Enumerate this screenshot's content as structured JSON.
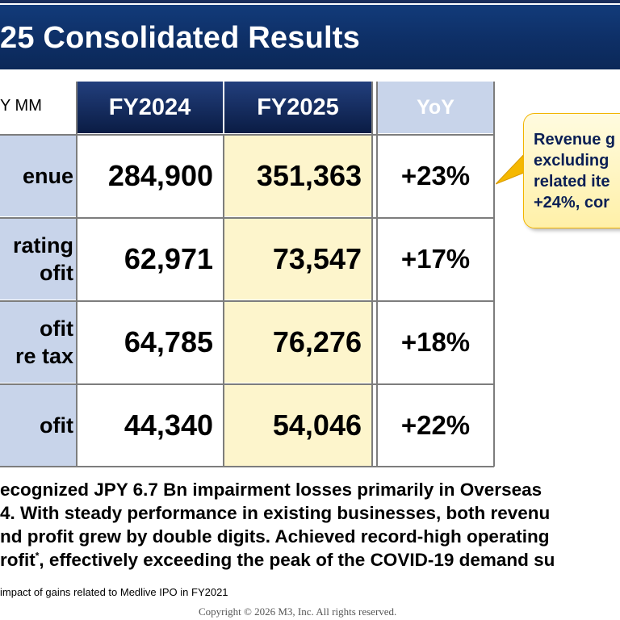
{
  "header": {
    "title": "25 Consolidated Results"
  },
  "table": {
    "unit_label": "Y MM",
    "columns": [
      "FY2024",
      "FY2025",
      "YoY"
    ],
    "rows": [
      {
        "label": [
          "enue"
        ],
        "fy2024": "284,900",
        "fy2025": "351,363",
        "yoy": "+23%"
      },
      {
        "label": [
          "rating",
          "ofit"
        ],
        "fy2024": "62,971",
        "fy2025": "73,547",
        "yoy": "+17%"
      },
      {
        "label": [
          "ofit",
          "re tax"
        ],
        "fy2024": "64,785",
        "fy2025": "76,276",
        "yoy": "+18%"
      },
      {
        "label": [
          "ofit"
        ],
        "fy2024": "44,340",
        "fy2025": "54,046",
        "yoy": "+22%"
      }
    ]
  },
  "callout": {
    "lines": [
      "Revenue g",
      "excluding",
      "related ite",
      "+24%, cor"
    ]
  },
  "summary": {
    "lines": [
      "ecognized JPY 6.7 Bn impairment losses primarily in Overseas",
      "4. With steady performance in existing businesses, both revenu",
      "nd profit grew by double digits. Achieved record-high operating",
      "rofit"
    ],
    "line4_sup": "*",
    "line4_rest": ", effectively exceeding the peak of the COVID-19 demand su"
  },
  "footnote": "impact of gains related to Medlive IPO in FY2021",
  "copyright": "Copyright © 2026  M3, Inc.  All rights reserved.",
  "colors": {
    "title_bar": "#0e2f66",
    "header_dark": "#0a1c44",
    "header_light": "#c8d4ea",
    "fy2025_fill": "#fdf5cc",
    "callout_fill": "#fff0a8",
    "callout_border": "#f2b400"
  }
}
